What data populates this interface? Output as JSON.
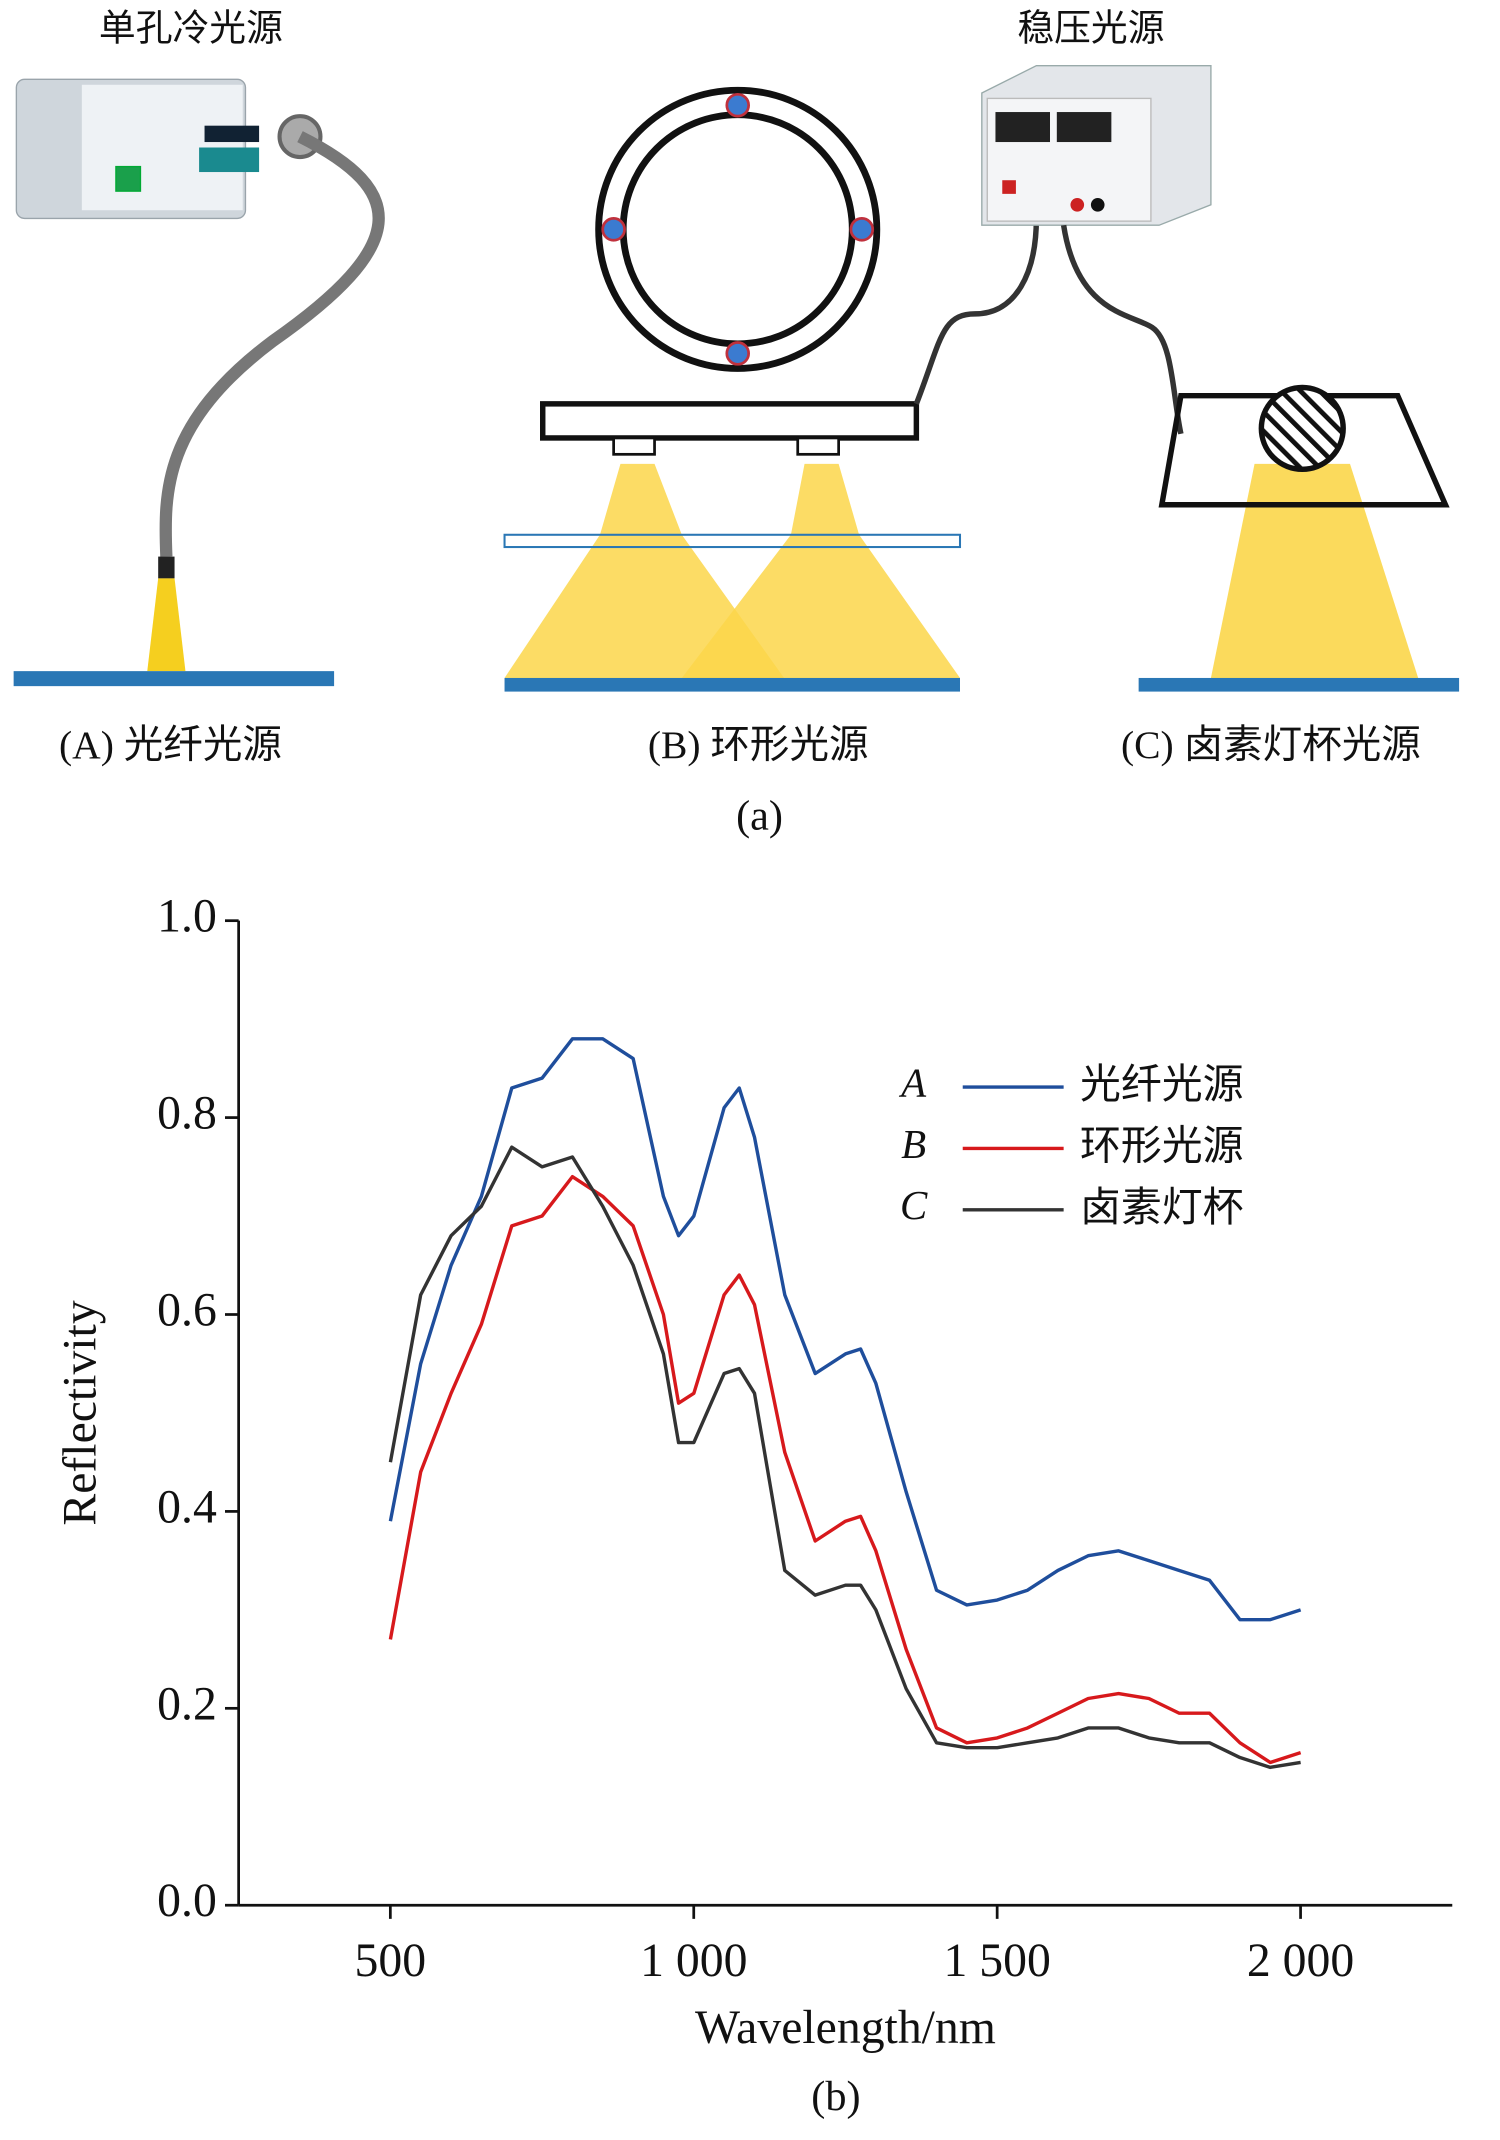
{
  "diagram": {
    "labels": [
      "单孔冷光源",
      "稳压光源"
    ],
    "captions": [
      "(A) 光纤光源",
      "(B) 环形光源",
      "(C) 卤素灯杯光源"
    ],
    "figure_label": "(a)"
  },
  "chart_data": {
    "type": "line",
    "caption": "(b)",
    "xlabel": "Wavelength/nm",
    "ylabel": "Reflectivity",
    "xlim": [
      250,
      2250
    ],
    "xticks": [
      500,
      {
        "value": 1000,
        "label": "1 000"
      },
      {
        "value": 1500,
        "label": "1 500"
      },
      {
        "value": 2000,
        "label": "2 000"
      }
    ],
    "ylim": [
      0,
      1
    ],
    "yticks": [
      {
        "value": 0,
        "label": "0.0"
      },
      0.2,
      0.4,
      0.6,
      0.8,
      {
        "value": 1,
        "label": "1.0"
      }
    ],
    "x": [
      500,
      550,
      600,
      650,
      700,
      750,
      800,
      850,
      900,
      950,
      975,
      1000,
      1050,
      1075,
      1100,
      1150,
      1200,
      1250,
      1275,
      1300,
      1350,
      1400,
      1450,
      1500,
      1550,
      1600,
      1650,
      1700,
      1750,
      1800,
      1850,
      1900,
      1950,
      2000
    ],
    "series": [
      {
        "letter": "A",
        "name": "光纤光源",
        "color": "#1f4e9c",
        "values": [
          0.39,
          0.55,
          0.65,
          0.72,
          0.83,
          0.84,
          0.88,
          0.88,
          0.86,
          0.72,
          0.68,
          0.7,
          0.81,
          0.83,
          0.78,
          0.62,
          0.54,
          0.56,
          0.565,
          0.53,
          0.42,
          0.32,
          0.305,
          0.31,
          0.32,
          0.34,
          0.355,
          0.36,
          0.35,
          0.34,
          0.33,
          0.29,
          0.29,
          0.3
        ]
      },
      {
        "letter": "B",
        "name": "环形光源",
        "color": "#d7191c",
        "values": [
          0.27,
          0.44,
          0.52,
          0.59,
          0.69,
          0.7,
          0.74,
          0.72,
          0.69,
          0.6,
          0.51,
          0.52,
          0.62,
          0.64,
          0.61,
          0.46,
          0.37,
          0.39,
          0.395,
          0.36,
          0.26,
          0.18,
          0.165,
          0.17,
          0.18,
          0.195,
          0.21,
          0.215,
          0.21,
          0.195,
          0.195,
          0.165,
          0.145,
          0.155
        ]
      },
      {
        "letter": "C",
        "name": "卤素灯杯",
        "color": "#333333",
        "values": [
          0.45,
          0.62,
          0.68,
          0.71,
          0.77,
          0.75,
          0.76,
          0.71,
          0.65,
          0.56,
          0.47,
          0.47,
          0.54,
          0.545,
          0.52,
          0.34,
          0.315,
          0.325,
          0.325,
          0.3,
          0.22,
          0.165,
          0.16,
          0.16,
          0.165,
          0.17,
          0.18,
          0.18,
          0.17,
          0.165,
          0.165,
          0.15,
          0.14,
          0.145
        ]
      }
    ]
  }
}
